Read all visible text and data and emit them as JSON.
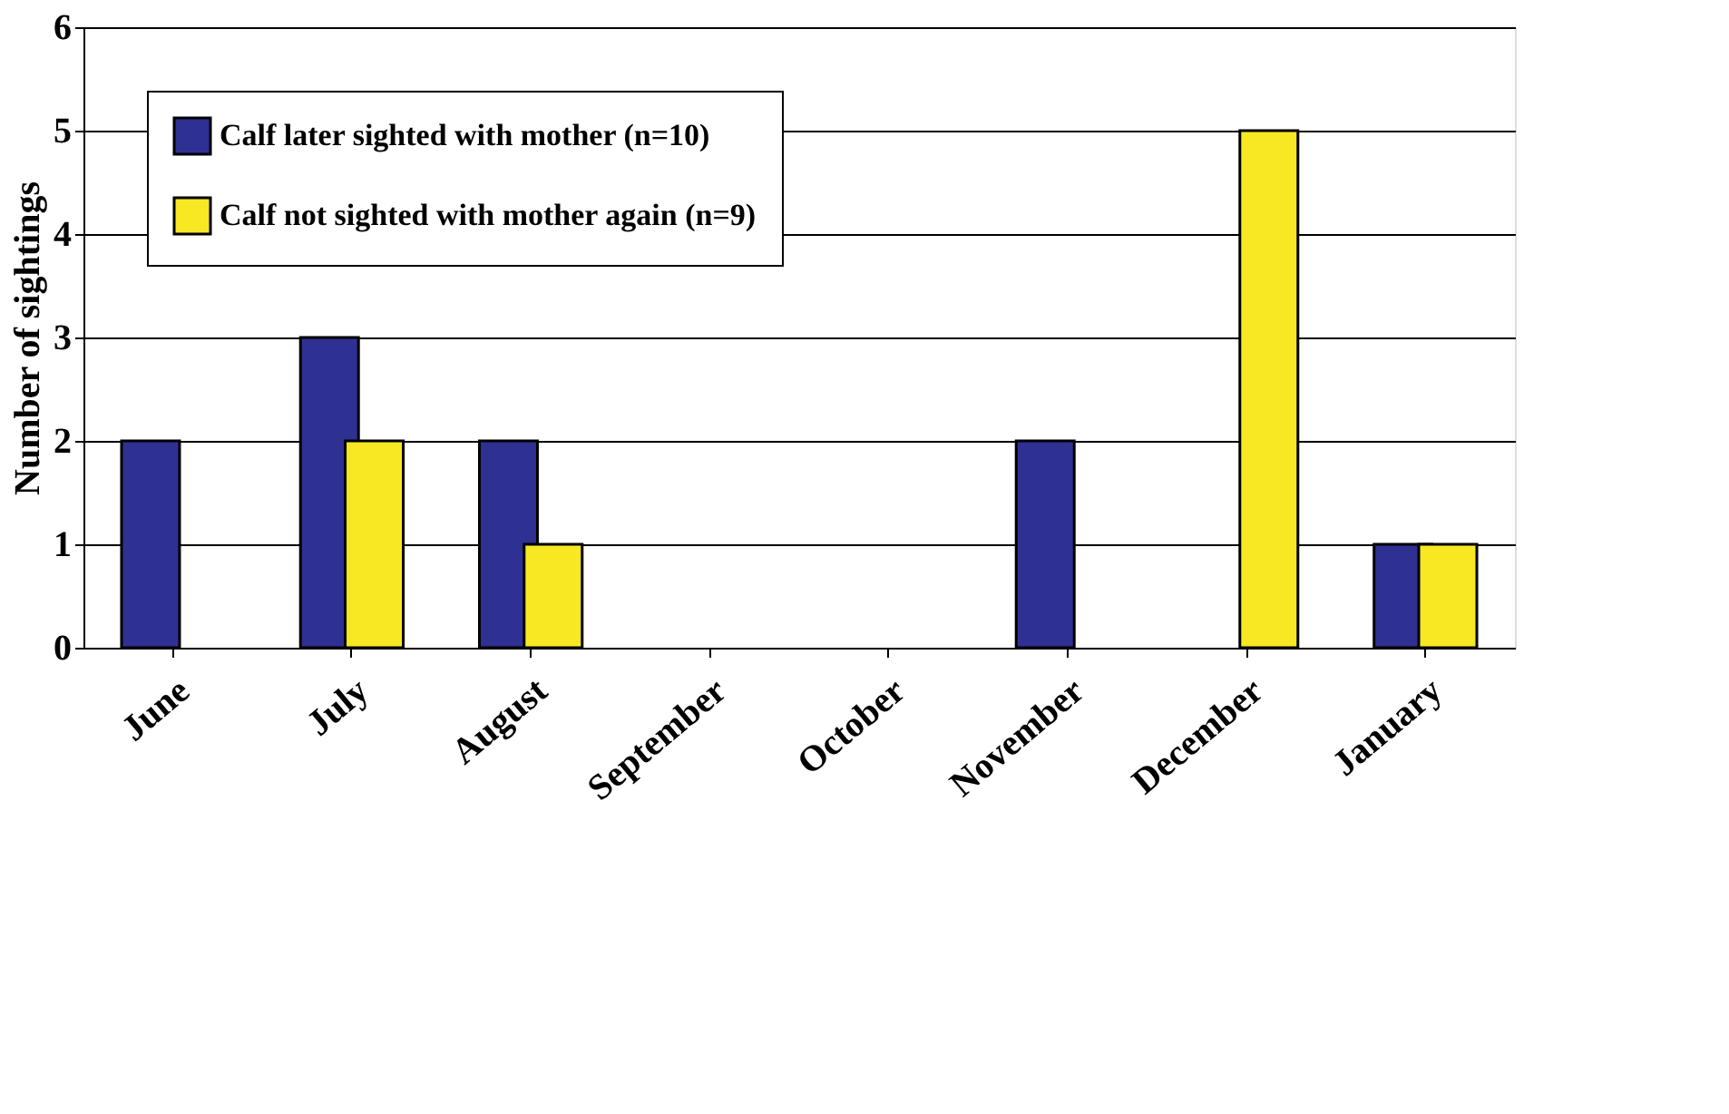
{
  "chart_data": {
    "type": "bar",
    "ylabel": "Number of sightings",
    "categories": [
      "June",
      "July",
      "August",
      "September",
      "October",
      "November",
      "December",
      "January"
    ],
    "series": [
      {
        "name": "Calf later sighted with mother (n=10)",
        "color": "#2e3192",
        "values": [
          2,
          3,
          2,
          0,
          0,
          2,
          0,
          1
        ]
      },
      {
        "name": "Calf not sighted with mother again (n=9)",
        "color": "#f7e823",
        "values": [
          0,
          2,
          1,
          0,
          0,
          0,
          5,
          1
        ]
      }
    ],
    "ylim": [
      0,
      6
    ],
    "yticks": [
      0,
      1,
      2,
      3,
      4,
      5,
      6
    ],
    "grid": "y",
    "legend": "top left"
  }
}
